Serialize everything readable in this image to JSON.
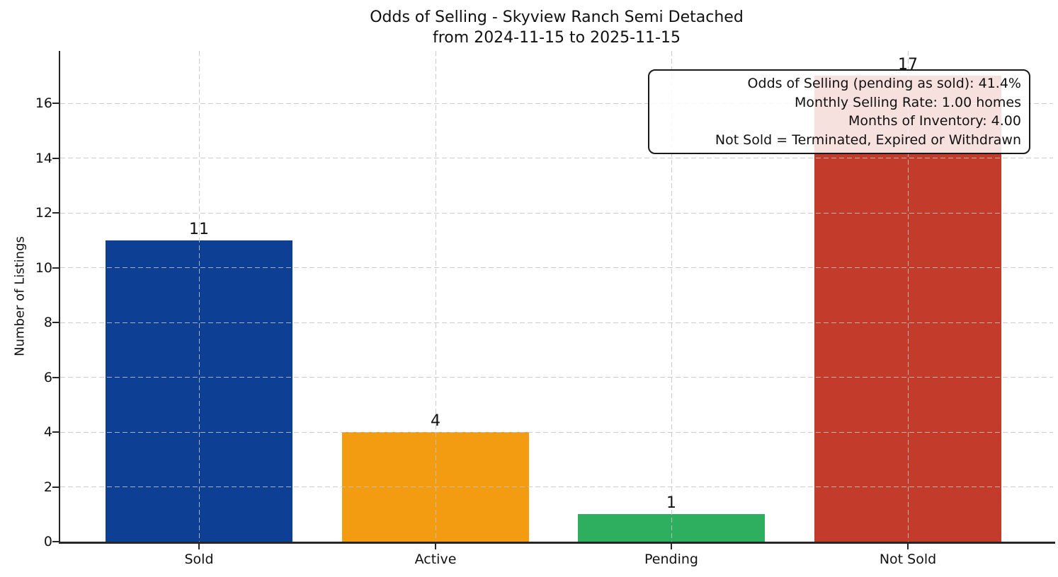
{
  "title": {
    "line1": "Odds of Selling - Skyview Ranch Semi Detached",
    "line2": "from 2024-11-15 to 2025-11-15"
  },
  "chart_data": {
    "type": "bar",
    "categories": [
      "Sold",
      "Active",
      "Pending",
      "Not Sold"
    ],
    "values": [
      11,
      4,
      1,
      17
    ],
    "bar_labels": [
      "11",
      "4",
      "1",
      "17"
    ],
    "bar_colors": [
      "#0d4094",
      "#f39c12",
      "#2daf5f",
      "#c33b2b"
    ],
    "xlabel": "",
    "ylabel": "Number of Listings",
    "yticks": [
      0,
      2,
      4,
      6,
      8,
      10,
      12,
      14,
      16
    ],
    "ylim": [
      0,
      17.9
    ],
    "grid": {
      "style": "dashed",
      "axes": "both",
      "color": "#c3c3c3",
      "drawn_over_bars": true
    },
    "legend": "none",
    "annotation": {
      "position": "top-right",
      "lines": [
        "Odds of Selling (pending as sold): 41.4%",
        "Monthly Selling Rate: 1.00 homes",
        "Months of Inventory: 4.00",
        "Not Sold = Terminated, Expired or Withdrawn"
      ]
    }
  },
  "colors": {
    "axis": "#262626",
    "text": "#111111",
    "annotation_border": "#1a1a1a",
    "annotation_background": "rgba(255,255,255,0.85)"
  }
}
